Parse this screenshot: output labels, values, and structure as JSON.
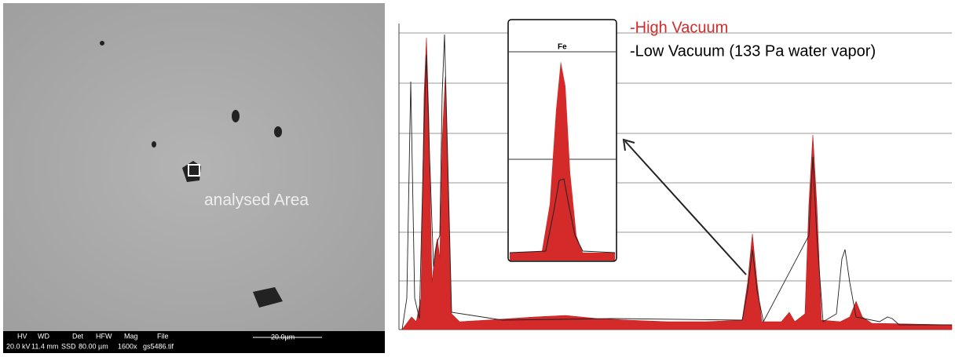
{
  "sem_image": {
    "annotation": "analysed Area",
    "databar": {
      "headers": [
        "HV",
        "WD",
        "Det",
        "HFW",
        "Mag",
        "File"
      ],
      "values": [
        "20.0 kV",
        "11.4 mm",
        "SSD",
        "80.00 µm",
        "1600x",
        "gs5486.tif"
      ],
      "scale": "20.0µm"
    }
  },
  "spectrum": {
    "legend": [
      "-High Vacuum",
      "-Low  Vacuum (133 Pa water vapor)"
    ],
    "inset_label": "Fe"
  }
}
